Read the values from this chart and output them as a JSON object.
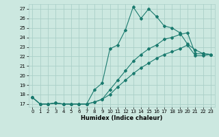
{
  "xlabel": "Humidex (Indice chaleur)",
  "background_color": "#cce8e0",
  "grid_color": "#aacfc8",
  "line_color": "#1a7a6e",
  "xlim_min": -0.5,
  "xlim_max": 23.5,
  "ylim_min": 16.7,
  "ylim_max": 27.5,
  "xticks": [
    0,
    1,
    2,
    3,
    4,
    5,
    6,
    7,
    8,
    9,
    10,
    11,
    12,
    13,
    14,
    15,
    16,
    17,
    18,
    19,
    20,
    21,
    22,
    23
  ],
  "yticks": [
    17,
    18,
    19,
    20,
    21,
    22,
    23,
    24,
    25,
    26,
    27
  ],
  "line1_x": [
    0,
    1,
    2,
    3,
    4,
    5,
    6,
    7,
    8,
    9,
    10,
    11,
    12,
    13,
    14,
    15,
    16,
    17,
    18,
    19,
    20,
    21,
    22,
    23
  ],
  "line1_y": [
    17.7,
    17.0,
    17.0,
    17.1,
    17.0,
    17.0,
    17.0,
    17.0,
    18.5,
    19.2,
    22.8,
    23.2,
    24.8,
    27.2,
    26.0,
    27.0,
    26.2,
    25.2,
    25.0,
    24.5,
    23.3,
    22.7,
    22.3,
    22.2
  ],
  "line2_x": [
    0,
    1,
    2,
    3,
    4,
    5,
    6,
    7,
    8,
    9,
    10,
    11,
    12,
    13,
    14,
    15,
    16,
    17,
    18,
    19,
    20,
    21,
    22,
    23
  ],
  "line2_y": [
    17.7,
    17.0,
    17.0,
    17.1,
    17.0,
    17.0,
    17.0,
    17.0,
    17.2,
    17.5,
    18.5,
    19.5,
    20.5,
    21.5,
    22.2,
    22.8,
    23.2,
    23.8,
    24.0,
    24.3,
    24.5,
    22.3,
    22.3,
    22.2
  ],
  "line3_x": [
    0,
    1,
    2,
    3,
    4,
    5,
    6,
    7,
    8,
    9,
    10,
    11,
    12,
    13,
    14,
    15,
    16,
    17,
    18,
    19,
    20,
    21,
    22,
    23
  ],
  "line3_y": [
    17.7,
    17.0,
    17.0,
    17.1,
    17.0,
    17.0,
    17.0,
    17.0,
    17.2,
    17.5,
    18.0,
    18.8,
    19.5,
    20.2,
    20.8,
    21.3,
    21.8,
    22.2,
    22.5,
    22.8,
    23.2,
    22.1,
    22.1,
    22.2
  ],
  "xlabel_fontsize": 6.0,
  "tick_fontsize": 5.0,
  "marker_size": 2.0,
  "linewidth": 0.8
}
